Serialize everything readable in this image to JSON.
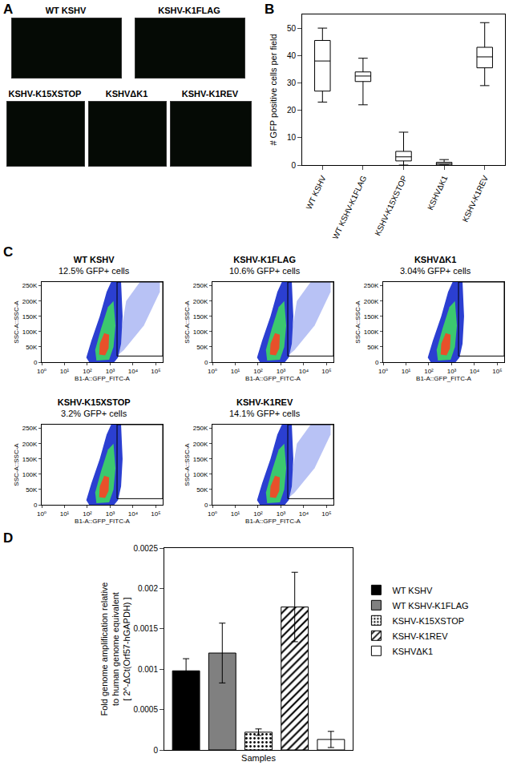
{
  "images": {
    "panel": "A",
    "labels": [
      "WT KSHV",
      "KSHV-K1FLAG",
      "KSHV-K15XSTOP",
      "KSHVΔK1",
      "KSHV-K1REV"
    ]
  },
  "chart_data": [
    {
      "type": "box",
      "panel": "B",
      "ylabel": "# GFP positive cells per field",
      "categories": [
        "WT KSHV",
        "WT KSHV-K1FLAG",
        "KSHV-K15XSTOP",
        "KSHVΔK1",
        "KSHV-K1REV"
      ],
      "min": [
        23,
        22,
        0,
        0,
        29
      ],
      "q1": [
        27,
        30.5,
        1.5,
        0,
        35.5
      ],
      "median": [
        38,
        32.5,
        3,
        0.5,
        39.5
      ],
      "q3": [
        45.5,
        34,
        5,
        1,
        43
      ],
      "max": [
        50,
        39,
        12,
        2,
        52
      ],
      "color": "#000000",
      "ylim": [
        0,
        55
      ],
      "yticks": [
        0,
        10,
        20,
        30,
        40,
        50
      ],
      "grid": false
    },
    {
      "type": "density",
      "panel": "C",
      "title": "WT KSHV",
      "subtitle": "12.5% GFP+ cells",
      "xlabel": "B1-A::GFP_FITC-A",
      "ylabel": "SSC-A::SSC-A",
      "log": "x",
      "xlim": [
        1,
        200000
      ],
      "xticks": [
        {
          "value": 1,
          "label": "10⁰"
        },
        {
          "value": 10,
          "label": "10¹"
        },
        {
          "value": 100,
          "label": "10²"
        },
        {
          "value": 1000,
          "label": "10³"
        },
        {
          "value": 10000,
          "label": "10⁴"
        },
        {
          "value": 100000,
          "label": "10⁵"
        }
      ],
      "ylim": [
        0,
        262144
      ],
      "yticks": [
        0,
        {
          "value": 50000,
          "label": "50K"
        },
        {
          "value": 100000,
          "label": "100K"
        },
        {
          "value": 150000,
          "label": "150K"
        },
        {
          "value": 200000,
          "label": "200K"
        },
        {
          "value": 250000,
          "label": "250K"
        }
      ],
      "gate": {
        "x": [
          2000,
          200000
        ],
        "y": [
          20000,
          262144
        ]
      },
      "regions": [
        {
          "color": "#b8c2f5",
          "x": [
            2000,
            4000,
            30000,
            150000,
            150000,
            20000,
            5000
          ],
          "y": [
            20000,
            40000,
            120000,
            230000,
            262144,
            262144,
            200000
          ]
        },
        {
          "color": "#2b3fd1",
          "x": [
            120,
            90,
            150,
            350,
            700,
            1100,
            3000,
            3500,
            3000,
            2200,
            1500
          ],
          "y": [
            0,
            15000,
            70000,
            150000,
            230000,
            262144,
            262144,
            150000,
            60000,
            15000,
            0
          ]
        },
        {
          "color": "#3cc86e",
          "x": [
            250,
            220,
            400,
            800,
            1400,
            1700,
            1400,
            900
          ],
          "y": [
            5000,
            40000,
            110000,
            180000,
            200000,
            120000,
            50000,
            8000
          ]
        },
        {
          "color": "#e8502a",
          "x": [
            330,
            350,
            550,
            900,
            850,
            600
          ],
          "y": [
            25000,
            60000,
            95000,
            90000,
            45000,
            22000
          ]
        }
      ]
    },
    {
      "type": "density",
      "panel": "C",
      "title": "KSHV-K1FLAG",
      "subtitle": "10.6% GFP+ cells",
      "xlabel": "B1-A::GFP_FITC-A",
      "ylabel": "SSC-A::SSC-A",
      "log": "x",
      "xlim": [
        1,
        200000
      ],
      "xticks": [
        {
          "value": 1,
          "label": "10⁰"
        },
        {
          "value": 10,
          "label": "10¹"
        },
        {
          "value": 100,
          "label": "10²"
        },
        {
          "value": 1000,
          "label": "10³"
        },
        {
          "value": 10000,
          "label": "10⁴"
        },
        {
          "value": 100000,
          "label": "10⁵"
        }
      ],
      "ylim": [
        0,
        262144
      ],
      "yticks": [
        0,
        {
          "value": 50000,
          "label": "50K"
        },
        {
          "value": 100000,
          "label": "100K"
        },
        {
          "value": 150000,
          "label": "150K"
        },
        {
          "value": 200000,
          "label": "200K"
        },
        {
          "value": 250000,
          "label": "250K"
        }
      ],
      "gate": {
        "x": [
          2000,
          200000
        ],
        "y": [
          20000,
          262144
        ]
      },
      "regions": [
        {
          "color": "#b8c2f5",
          "x": [
            2000,
            4000,
            30000,
            150000,
            150000,
            20000,
            5000
          ],
          "y": [
            20000,
            40000,
            120000,
            230000,
            262144,
            262144,
            200000
          ]
        },
        {
          "color": "#2b3fd1",
          "x": [
            120,
            90,
            150,
            350,
            700,
            1100,
            3000,
            3500,
            3000,
            2200,
            1500
          ],
          "y": [
            0,
            15000,
            70000,
            150000,
            230000,
            262144,
            262144,
            150000,
            60000,
            15000,
            0
          ]
        },
        {
          "color": "#3cc86e",
          "x": [
            250,
            220,
            400,
            800,
            1400,
            1700,
            1400,
            900
          ],
          "y": [
            5000,
            40000,
            110000,
            180000,
            200000,
            120000,
            50000,
            8000
          ]
        },
        {
          "color": "#e8502a",
          "x": [
            330,
            350,
            550,
            900,
            850,
            600
          ],
          "y": [
            25000,
            60000,
            95000,
            90000,
            45000,
            22000
          ]
        }
      ]
    },
    {
      "type": "density",
      "panel": "C",
      "title": "KSHVΔK1",
      "subtitle": "3.04% GFP+ cells",
      "xlabel": "B1-A::GFP_FITC-A",
      "ylabel": "SSC-A::SSC-A",
      "log": "x",
      "xlim": [
        1,
        200000
      ],
      "xticks": [
        {
          "value": 1,
          "label": "10⁰"
        },
        {
          "value": 10,
          "label": "10¹"
        },
        {
          "value": 100,
          "label": "10²"
        },
        {
          "value": 1000,
          "label": "10³"
        },
        {
          "value": 10000,
          "label": "10⁴"
        },
        {
          "value": 100000,
          "label": "10⁵"
        }
      ],
      "ylim": [
        0,
        262144
      ],
      "yticks": [
        0,
        {
          "value": 50000,
          "label": "50K"
        },
        {
          "value": 100000,
          "label": "100K"
        },
        {
          "value": 150000,
          "label": "150K"
        },
        {
          "value": 200000,
          "label": "200K"
        },
        {
          "value": 250000,
          "label": "250K"
        }
      ],
      "gate": {
        "x": [
          2000,
          200000
        ],
        "y": [
          20000,
          262144
        ]
      },
      "regions": [
        {
          "color": "#2b3fd1",
          "x": [
            120,
            90,
            150,
            350,
            700,
            1100,
            3000,
            3500,
            3000,
            2200,
            1500
          ],
          "y": [
            0,
            15000,
            70000,
            150000,
            230000,
            262144,
            262144,
            150000,
            60000,
            15000,
            0
          ]
        },
        {
          "color": "#3cc86e",
          "x": [
            250,
            220,
            400,
            800,
            1400,
            1700,
            1400,
            900
          ],
          "y": [
            5000,
            40000,
            110000,
            180000,
            200000,
            120000,
            50000,
            8000
          ]
        },
        {
          "color": "#e8502a",
          "x": [
            330,
            350,
            550,
            900,
            850,
            600
          ],
          "y": [
            25000,
            60000,
            95000,
            90000,
            45000,
            22000
          ]
        }
      ]
    },
    {
      "type": "density",
      "panel": "C",
      "title": "KSHV-K15XSTOP",
      "subtitle": "3.2% GFP+ cells",
      "xlabel": "B1-A::GFP_FITC-A",
      "ylabel": "SSC-A::SSC-A",
      "log": "x",
      "xlim": [
        1,
        200000
      ],
      "xticks": [
        {
          "value": 1,
          "label": "10⁰"
        },
        {
          "value": 10,
          "label": "10¹"
        },
        {
          "value": 100,
          "label": "10²"
        },
        {
          "value": 1000,
          "label": "10³"
        },
        {
          "value": 10000,
          "label": "10⁴"
        },
        {
          "value": 100000,
          "label": "10⁵"
        }
      ],
      "ylim": [
        0,
        262144
      ],
      "yticks": [
        0,
        {
          "value": 50000,
          "label": "50K"
        },
        {
          "value": 100000,
          "label": "100K"
        },
        {
          "value": 150000,
          "label": "150K"
        },
        {
          "value": 200000,
          "label": "200K"
        },
        {
          "value": 250000,
          "label": "250K"
        }
      ],
      "gate": {
        "x": [
          2000,
          200000
        ],
        "y": [
          20000,
          262144
        ]
      },
      "regions": [
        {
          "color": "#2b3fd1",
          "x": [
            120,
            90,
            150,
            350,
            700,
            1100,
            3000,
            3500,
            3000,
            2200,
            1500
          ],
          "y": [
            0,
            15000,
            70000,
            150000,
            230000,
            262144,
            262144,
            150000,
            60000,
            15000,
            0
          ]
        },
        {
          "color": "#3cc86e",
          "x": [
            250,
            220,
            400,
            800,
            1400,
            1700,
            1400,
            900
          ],
          "y": [
            5000,
            40000,
            110000,
            180000,
            200000,
            120000,
            50000,
            8000
          ]
        },
        {
          "color": "#e8502a",
          "x": [
            330,
            350,
            550,
            900,
            850,
            600
          ],
          "y": [
            25000,
            60000,
            95000,
            90000,
            45000,
            22000
          ]
        }
      ]
    },
    {
      "type": "density",
      "panel": "C",
      "title": "KSHV-K1REV",
      "subtitle": "14.1% GFP+ cells",
      "xlabel": "B1-A::GFP_FITC-A",
      "ylabel": "SSC-A::SSC-A",
      "log": "x",
      "xlim": [
        1,
        200000
      ],
      "xticks": [
        {
          "value": 1,
          "label": "10⁰"
        },
        {
          "value": 10,
          "label": "10¹"
        },
        {
          "value": 100,
          "label": "10²"
        },
        {
          "value": 1000,
          "label": "10³"
        },
        {
          "value": 10000,
          "label": "10⁴"
        },
        {
          "value": 100000,
          "label": "10⁵"
        }
      ],
      "ylim": [
        0,
        262144
      ],
      "yticks": [
        0,
        {
          "value": 50000,
          "label": "50K"
        },
        {
          "value": 100000,
          "label": "100K"
        },
        {
          "value": 150000,
          "label": "150K"
        },
        {
          "value": 200000,
          "label": "200K"
        },
        {
          "value": 250000,
          "label": "250K"
        }
      ],
      "gate": {
        "x": [
          2000,
          200000
        ],
        "y": [
          20000,
          262144
        ]
      },
      "regions": [
        {
          "color": "#b8c2f5",
          "x": [
            2000,
            4000,
            30000,
            150000,
            150000,
            20000,
            5000
          ],
          "y": [
            20000,
            40000,
            120000,
            230000,
            262144,
            262144,
            200000
          ]
        },
        {
          "color": "#2b3fd1",
          "x": [
            120,
            90,
            150,
            350,
            700,
            1100,
            3000,
            3500,
            3000,
            2200,
            1500
          ],
          "y": [
            0,
            15000,
            70000,
            150000,
            230000,
            262144,
            262144,
            150000,
            60000,
            15000,
            0
          ]
        },
        {
          "color": "#3cc86e",
          "x": [
            250,
            220,
            400,
            800,
            1400,
            1700,
            1400,
            900
          ],
          "y": [
            5000,
            40000,
            110000,
            180000,
            200000,
            120000,
            50000,
            8000
          ]
        },
        {
          "color": "#e8502a",
          "x": [
            330,
            350,
            550,
            900,
            850,
            600
          ],
          "y": [
            25000,
            60000,
            95000,
            90000,
            45000,
            22000
          ]
        }
      ]
    },
    {
      "type": "bar",
      "panel": "D",
      "xlabel": "Samples",
      "ylabel": [
        "Fold genome amplification relative",
        "to human genome equivalent",
        "[ 2^-ΔCt(Orf57-hGAPDH) ]"
      ],
      "ylim": [
        0,
        0.0025
      ],
      "yticks": [
        0,
        0.0005,
        0.001,
        0.0015,
        0.002,
        0.0025
      ],
      "tick_labels": "y",
      "legend": "right",
      "grid": false,
      "series": [
        {
          "name": "WT KSHV",
          "color": "#000000",
          "marker": "solid",
          "values": [
            0.00098
          ],
          "error": [
            0.00015
          ]
        },
        {
          "name": "WT KSHV-K1FLAG",
          "color": "#808080",
          "marker": "solid",
          "values": [
            0.0012
          ],
          "error": [
            0.00037
          ]
        },
        {
          "name": "KSHV-K15XSTOP",
          "color": "#ffffff",
          "marker": "dots",
          "values": [
            0.00022
          ],
          "error": [
            4e-05
          ]
        },
        {
          "name": "KSHV-K1REV",
          "color": "#ffffff",
          "marker": "hatch",
          "values": [
            0.00177
          ],
          "error": [
            0.00043
          ]
        },
        {
          "name": "KSHVΔK1",
          "color": "#ffffff",
          "marker": "solid",
          "values": [
            0.00013
          ],
          "error": [
            0.0001
          ]
        }
      ]
    }
  ]
}
